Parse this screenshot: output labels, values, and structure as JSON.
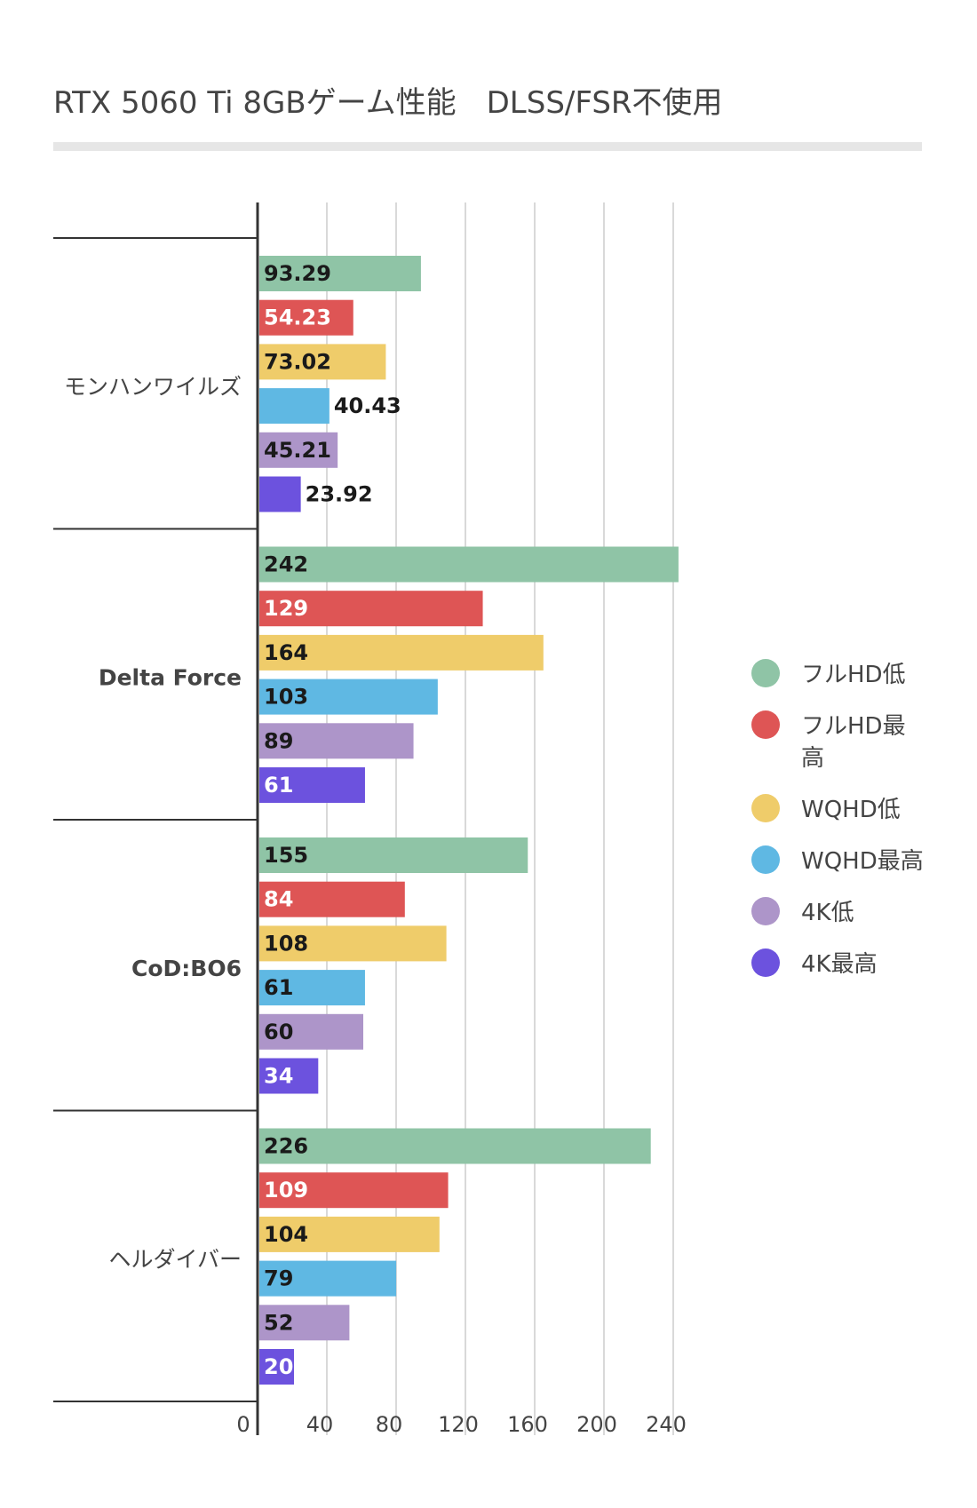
{
  "title": "RTX 5060 Ti 8GBゲーム性能　DLSS/FSR不使用",
  "chart_data": {
    "type": "bar",
    "orientation": "horizontal",
    "categories": [
      "モンハンワイルズ",
      "Delta Force",
      "CoD:BO6",
      "ヘルダイバー"
    ],
    "series": [
      {
        "name": "フルHD低",
        "color": "#8fc4a6",
        "values": [
          93.29,
          242,
          155,
          226
        ]
      },
      {
        "name": "フルHD最高",
        "color": "#de5555",
        "values": [
          54.23,
          129,
          84,
          109
        ]
      },
      {
        "name": "WQHD低",
        "color": "#efcc6a",
        "values": [
          73.02,
          164,
          108,
          104
        ]
      },
      {
        "name": "WQHD最高",
        "color": "#5fb8e3",
        "values": [
          40.43,
          103,
          61,
          79
        ]
      },
      {
        "name": "4K低",
        "color": "#ad95c9",
        "values": [
          45.21,
          89,
          60,
          52
        ]
      },
      {
        "name": "4K最高",
        "color": "#6c52de",
        "values": [
          23.92,
          61,
          34,
          20
        ]
      }
    ],
    "data_labels": [
      [
        "93.29",
        "242",
        "155",
        "226"
      ],
      [
        "54.23",
        "129",
        "84",
        "109"
      ],
      [
        "73.02",
        "164",
        "108",
        "104"
      ],
      [
        "40.43",
        "103",
        "61",
        "79"
      ],
      [
        "45.21",
        "89",
        "60",
        "52"
      ],
      [
        "23.92",
        "61",
        "34",
        "20"
      ]
    ],
    "label_colors": [
      "#1a1a1a",
      "#ffffff",
      "#1a1a1a",
      "#1a1a1a",
      "#1a1a1a",
      "#ffffff"
    ],
    "xlim": [
      0,
      240
    ],
    "xticks": [
      "0",
      "40",
      "80",
      "120",
      "160",
      "200",
      "240"
    ],
    "grid": true,
    "legend_position": "right"
  }
}
